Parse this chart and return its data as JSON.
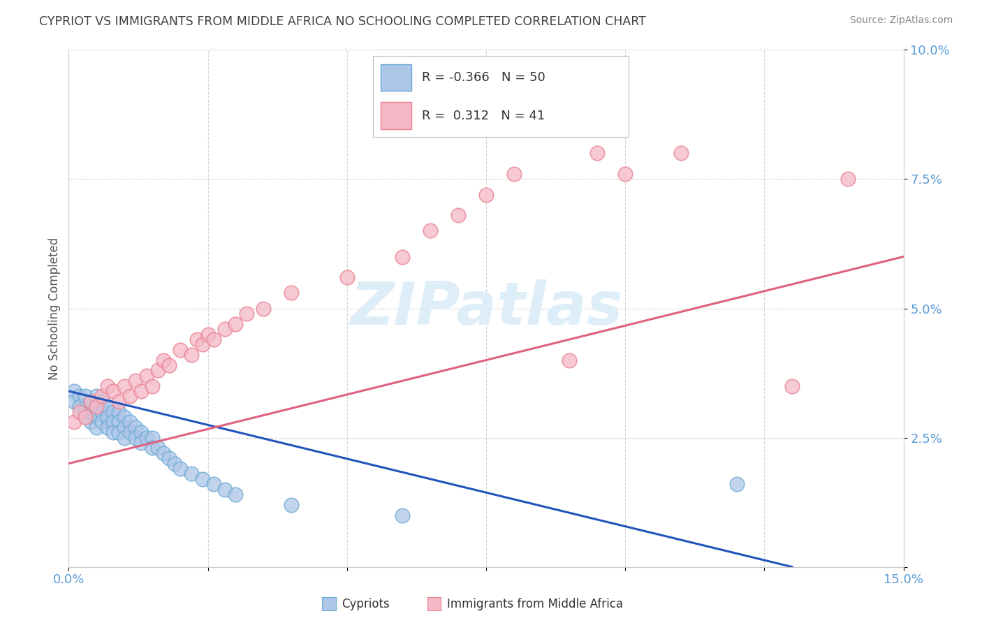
{
  "title": "CYPRIOT VS IMMIGRANTS FROM MIDDLE AFRICA NO SCHOOLING COMPLETED CORRELATION CHART",
  "source": "Source: ZipAtlas.com",
  "ylabel": "No Schooling Completed",
  "xlim": [
    0.0,
    0.15
  ],
  "ylim": [
    0.0,
    0.1
  ],
  "xtick_positions": [
    0.0,
    0.025,
    0.05,
    0.075,
    0.1,
    0.125,
    0.15
  ],
  "xtick_labels": [
    "0.0%",
    "",
    "",
    "",
    "",
    "",
    "15.0%"
  ],
  "ytick_positions": [
    0.0,
    0.025,
    0.05,
    0.075,
    0.1
  ],
  "ytick_labels": [
    "",
    "2.5%",
    "5.0%",
    "7.5%",
    "10.0%"
  ],
  "cypriot_color": "#aec6e8",
  "cypriot_edge_color": "#6aaad4",
  "immigrant_color": "#f4b8c8",
  "immigrant_edge_color": "#e8808c",
  "cypriot_R": -0.366,
  "cypriot_N": 50,
  "immigrant_R": 0.312,
  "immigrant_N": 41,
  "cypriot_line_color": "#2255bb",
  "immigrant_line_color": "#e06080",
  "background_color": "#ffffff",
  "grid_color": "#cccccc",
  "title_color": "#404040",
  "axis_tick_color": "#5b9bd5",
  "watermark_color": "#ddeef8",
  "cypriot_x": [
    0.001,
    0.001,
    0.002,
    0.002,
    0.003,
    0.003,
    0.004,
    0.004,
    0.004,
    0.005,
    0.005,
    0.005,
    0.005,
    0.006,
    0.006,
    0.006,
    0.007,
    0.007,
    0.007,
    0.008,
    0.008,
    0.008,
    0.009,
    0.009,
    0.009,
    0.01,
    0.01,
    0.01,
    0.011,
    0.011,
    0.012,
    0.012,
    0.013,
    0.013,
    0.014,
    0.015,
    0.015,
    0.016,
    0.017,
    0.018,
    0.019,
    0.02,
    0.022,
    0.024,
    0.026,
    0.028,
    0.03,
    0.04,
    0.06,
    0.12
  ],
  "cypriot_y": [
    0.034,
    0.032,
    0.033,
    0.031,
    0.033,
    0.03,
    0.032,
    0.03,
    0.028,
    0.033,
    0.031,
    0.029,
    0.027,
    0.032,
    0.03,
    0.028,
    0.031,
    0.029,
    0.027,
    0.03,
    0.028,
    0.026,
    0.03,
    0.028,
    0.026,
    0.029,
    0.027,
    0.025,
    0.028,
    0.026,
    0.027,
    0.025,
    0.026,
    0.024,
    0.025,
    0.025,
    0.023,
    0.023,
    0.022,
    0.021,
    0.02,
    0.019,
    0.018,
    0.017,
    0.016,
    0.015,
    0.014,
    0.012,
    0.01,
    0.016
  ],
  "immigrant_x": [
    0.001,
    0.002,
    0.003,
    0.004,
    0.005,
    0.006,
    0.007,
    0.008,
    0.009,
    0.01,
    0.011,
    0.012,
    0.013,
    0.014,
    0.015,
    0.016,
    0.017,
    0.018,
    0.02,
    0.022,
    0.023,
    0.024,
    0.025,
    0.026,
    0.028,
    0.03,
    0.032,
    0.035,
    0.04,
    0.05,
    0.06,
    0.065,
    0.07,
    0.075,
    0.08,
    0.09,
    0.095,
    0.1,
    0.11,
    0.13,
    0.14
  ],
  "immigrant_y": [
    0.028,
    0.03,
    0.029,
    0.032,
    0.031,
    0.033,
    0.035,
    0.034,
    0.032,
    0.035,
    0.033,
    0.036,
    0.034,
    0.037,
    0.035,
    0.038,
    0.04,
    0.039,
    0.042,
    0.041,
    0.044,
    0.043,
    0.045,
    0.044,
    0.046,
    0.047,
    0.049,
    0.05,
    0.053,
    0.056,
    0.06,
    0.065,
    0.068,
    0.072,
    0.076,
    0.04,
    0.08,
    0.076,
    0.08,
    0.035,
    0.075
  ],
  "cypriot_trend_x": [
    0.0,
    0.13
  ],
  "cypriot_trend_y": [
    0.034,
    0.0
  ],
  "immigrant_trend_x": [
    0.0,
    0.15
  ],
  "immigrant_trend_y": [
    0.02,
    0.06
  ],
  "legend_entries": [
    {
      "label": "R = -0.366   N = 50",
      "color": "#aec6e8",
      "edge": "#6aaad4"
    },
    {
      "label": "R =  0.312   N = 41",
      "color": "#f4b8c8",
      "edge": "#e8808c"
    }
  ],
  "bottom_legend": [
    {
      "label": "Cypriots",
      "color": "#aec6e8",
      "edge": "#6aaad4"
    },
    {
      "label": "Immigrants from Middle Africa",
      "color": "#f4b8c8",
      "edge": "#e8808c"
    }
  ]
}
